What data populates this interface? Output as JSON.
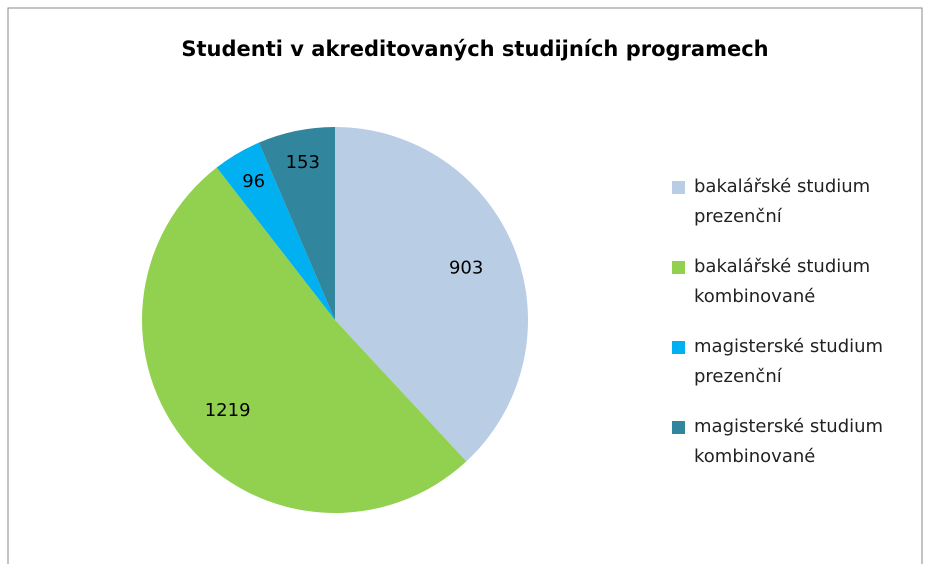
{
  "chart_data": {
    "type": "pie",
    "title": "Studenti v akreditovaných studijních programech",
    "categories": [
      "bakalářské studium prezenční",
      "bakalářské studium kombinované",
      "magisterské studium prezenční",
      "magisterské studium kombinované"
    ],
    "values": [
      903,
      1219,
      96,
      153
    ],
    "colors": [
      "#b9cde5",
      "#92d050",
      "#00b0f0",
      "#31859c"
    ],
    "legend": "right"
  }
}
